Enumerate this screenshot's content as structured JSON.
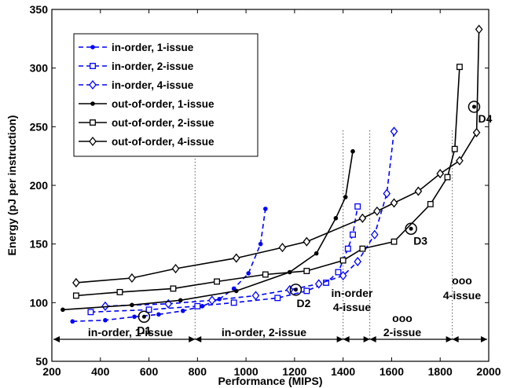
{
  "chart_data": {
    "type": "line",
    "xlabel": "Performance (MIPS)",
    "ylabel": "Energy (pJ per instruction)",
    "xlim": [
      200,
      2000
    ],
    "ylim": [
      50,
      350
    ],
    "xticks": [
      200,
      400,
      600,
      800,
      1000,
      1200,
      1400,
      1600,
      1800,
      2000
    ],
    "yticks": [
      50,
      100,
      150,
      200,
      250,
      300,
      350
    ],
    "grid": false,
    "legend_position": "top-left",
    "series": [
      {
        "name": "in-order, 1-issue",
        "color": "#0000ff",
        "dash": "dashed",
        "marker": "dot",
        "x": [
          285,
          420,
          540,
          640,
          740,
          820,
          890,
          950,
          1010,
          1060,
          1080
        ],
        "y": [
          84,
          85,
          88,
          90,
          93,
          97,
          103,
          112,
          125,
          150,
          180
        ]
      },
      {
        "name": "in-order, 2-issue",
        "color": "#0000ff",
        "dash": "dashed",
        "marker": "square",
        "x": [
          360,
          600,
          800,
          950,
          1130,
          1250,
          1330,
          1380,
          1420,
          1440,
          1460
        ],
        "y": [
          92,
          94,
          97,
          100,
          104,
          110,
          117,
          126,
          146,
          158,
          182
        ]
      },
      {
        "name": "in-order, 4-issue",
        "color": "#0000ff",
        "dash": "dashed",
        "marker": "diamond",
        "x": [
          420,
          680,
          860,
          1040,
          1180,
          1300,
          1400,
          1460,
          1530,
          1580,
          1610
        ],
        "y": [
          97,
          99,
          102,
          106,
          111,
          116,
          123,
          135,
          158,
          193,
          246
        ]
      },
      {
        "name": "out-of-order, 1-issue",
        "color": "#000000",
        "dash": "solid",
        "marker": "dot",
        "x": [
          245,
          530,
          730,
          960,
          1180,
          1290,
          1370,
          1410,
          1440
        ],
        "y": [
          94,
          98,
          102,
          110,
          126,
          142,
          172,
          190,
          229
        ]
      },
      {
        "name": "out-of-order, 2-issue",
        "color": "#000000",
        "dash": "solid",
        "marker": "square",
        "x": [
          300,
          480,
          700,
          880,
          1080,
          1250,
          1400,
          1480,
          1610,
          1760,
          1830,
          1860,
          1880
        ],
        "y": [
          106,
          109,
          112,
          118,
          124,
          127,
          136,
          146,
          152,
          184,
          207,
          231,
          301
        ]
      },
      {
        "name": "out-of-order, 4-issue",
        "color": "#000000",
        "dash": "solid",
        "marker": "diamond",
        "x": [
          300,
          530,
          710,
          960,
          1150,
          1250,
          1480,
          1540,
          1610,
          1710,
          1800,
          1880,
          1950,
          1960
        ],
        "y": [
          117,
          121,
          129,
          138,
          147,
          152,
          172,
          178,
          185,
          195,
          210,
          221,
          245,
          333
        ]
      }
    ],
    "design_points": [
      {
        "label": "D1",
        "x": 580,
        "y": 88
      },
      {
        "label": "D2",
        "x": 1205,
        "y": 111
      },
      {
        "label": "D3",
        "x": 1680,
        "y": 163
      },
      {
        "label": "D4",
        "x": 1940,
        "y": 267
      }
    ],
    "regions": [
      {
        "label": "in-order, 1-issue",
        "x_start": 200,
        "x_end": 790
      },
      {
        "label": "in-order, 2-issue",
        "x_start": 790,
        "x_end": 1400
      },
      {
        "label": "in-order 4-issue",
        "x_start": 1400,
        "x_end": 1510
      },
      {
        "label": "ooo 2-issue",
        "x_start": 1510,
        "x_end": 1850
      },
      {
        "label": "ooo 4-issue",
        "x_start": 1850,
        "x_end": 2000
      }
    ]
  }
}
